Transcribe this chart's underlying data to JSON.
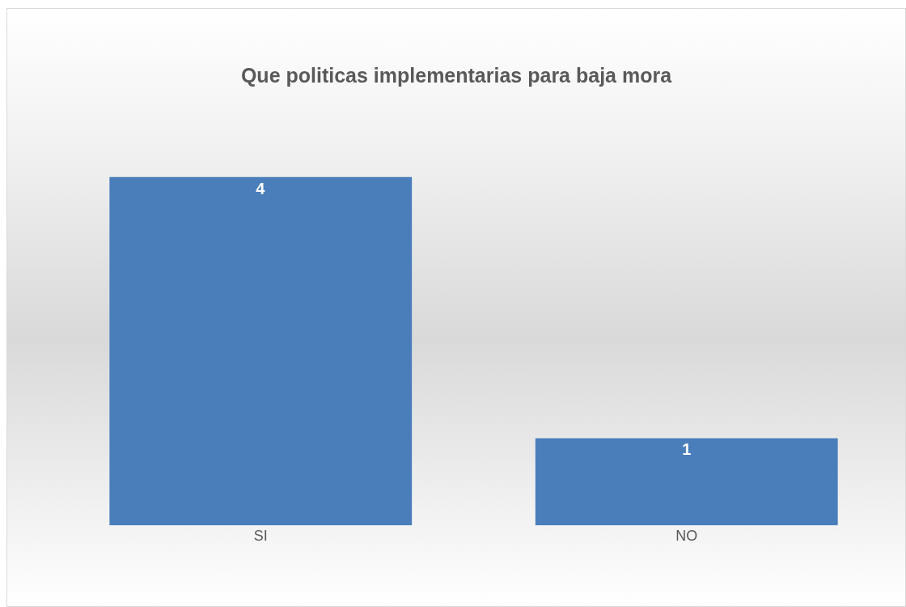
{
  "chart_data": {
    "type": "bar",
    "title": "Que politicas implementarias para baja mora",
    "categories": [
      "SI",
      "NO"
    ],
    "values": [
      4,
      1
    ],
    "color": "#4a7ebb",
    "data_labels": true
  }
}
